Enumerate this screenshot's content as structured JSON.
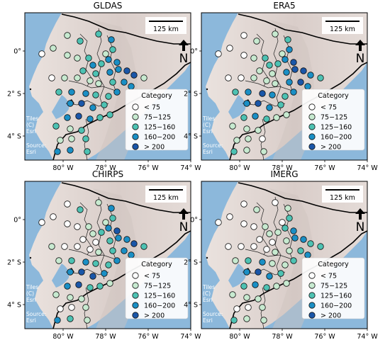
{
  "colors": {
    "ocean": "#8cb8db",
    "land": "#e2d8d4",
    "land_shade": "#cfc3bf",
    "cat_lt75": "#ffffff",
    "cat_75_125": "#c7ead0",
    "cat_125_160": "#4dc2b3",
    "cat_160_200": "#1a8fc5",
    "cat_gt200": "#1a56a8"
  },
  "legend": {
    "title": "Category",
    "items": [
      {
        "label": "< 75",
        "color_key": "cat_lt75"
      },
      {
        "label": "75−125",
        "color_key": "cat_75_125"
      },
      {
        "label": "125−160",
        "color_key": "cat_125_160"
      },
      {
        "label": "160−200",
        "color_key": "cat_160_200"
      },
      {
        "label": "> 200",
        "color_key": "cat_gt200"
      }
    ]
  },
  "scalebar_label": "125 km",
  "north_label": "N",
  "attribution": {
    "tiles": [
      "Tiles",
      "(C)",
      "Esri"
    ],
    "source": [
      "Source:",
      "Esri"
    ]
  },
  "axes": {
    "x_ticks": [
      "80° W",
      "78° W",
      "76° W",
      "74° W"
    ],
    "y_ticks": [
      "0°",
      "2° S",
      "4° S"
    ]
  },
  "panels": [
    {
      "title": "GLDAS"
    },
    {
      "title": "ERA5"
    },
    {
      "title": "CHIRPS"
    },
    {
      "title": "IMERG"
    }
  ]
}
